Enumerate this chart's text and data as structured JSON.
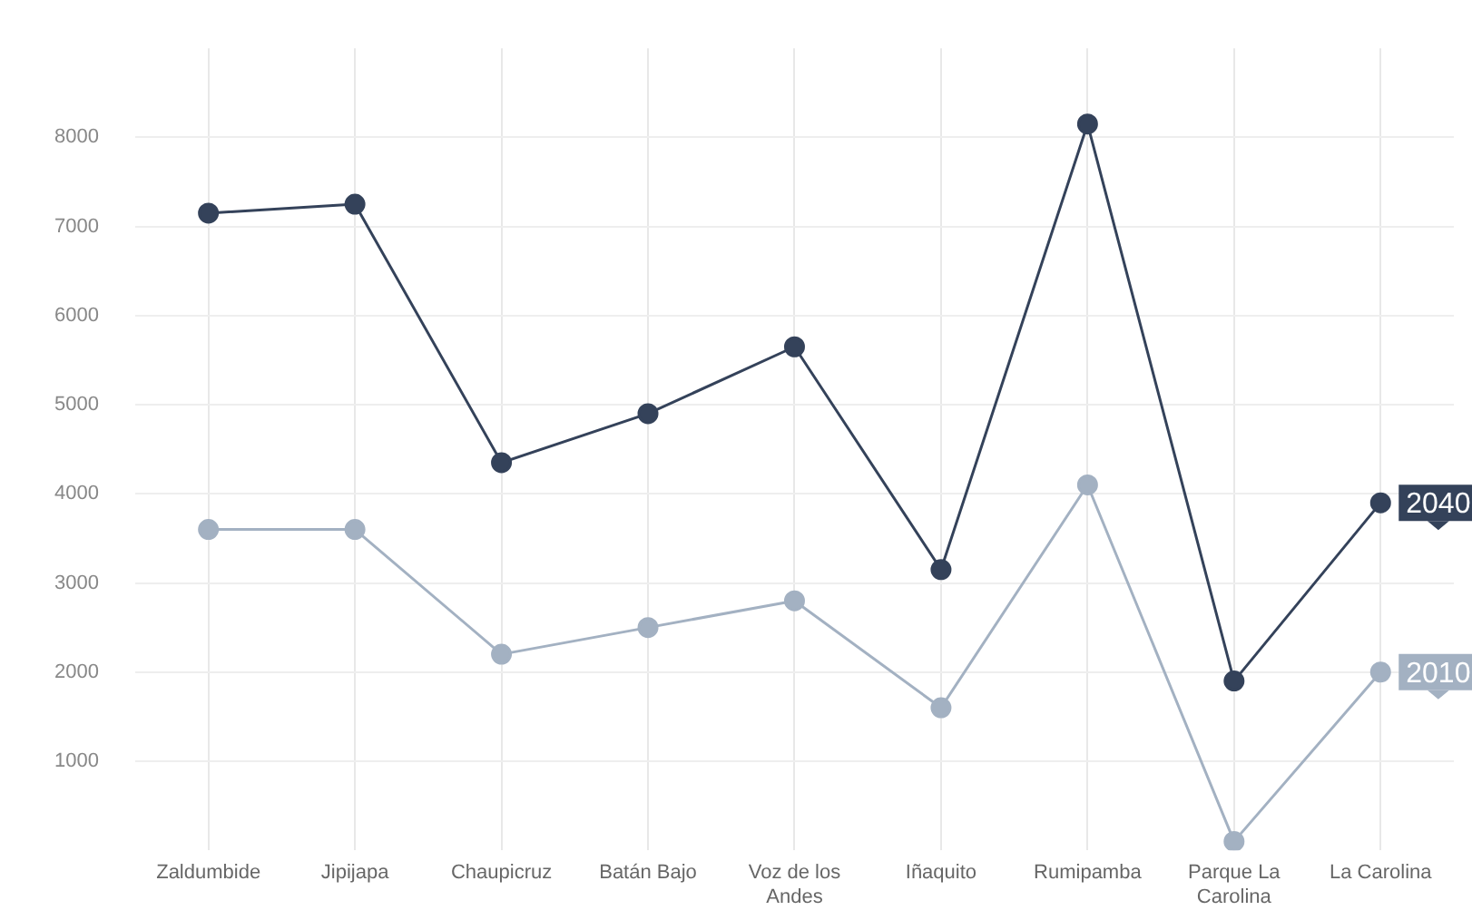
{
  "chart_data": {
    "type": "line",
    "categories": [
      "Zaldumbide",
      "Jipijapa",
      "Chaupicruz",
      "Batán Bajo",
      "Voz de los Andes",
      "Iñaquito",
      "Rumipamba",
      "Parque La Carolina",
      "La Carolina"
    ],
    "series": [
      {
        "name": "2040",
        "color": "#34425a",
        "values": [
          7150,
          7250,
          4350,
          4900,
          5650,
          3150,
          8150,
          1900,
          3900
        ]
      },
      {
        "name": "2010",
        "color": "#a3b1c2",
        "values": [
          3600,
          3600,
          2200,
          2500,
          2800,
          1600,
          4100,
          100,
          2000
        ]
      }
    ],
    "ylim": [
      0,
      9000
    ],
    "yticks": [
      1000,
      2000,
      3000,
      4000,
      5000,
      6000,
      7000,
      8000
    ],
    "grid": true,
    "marker": "circle",
    "legend": false
  }
}
